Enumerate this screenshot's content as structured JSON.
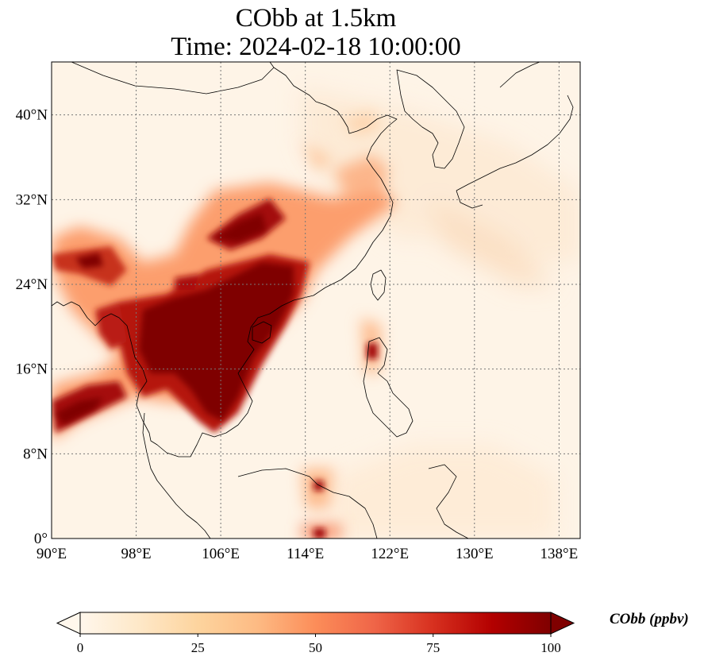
{
  "title": {
    "line1": "CObb at 1.5km",
    "line2": "Time: 2024-02-18 10:00:00"
  },
  "map": {
    "lon_range": [
      90,
      140
    ],
    "lat_range": [
      0,
      45
    ],
    "xticks": [
      {
        "value": 90,
        "label": "90°E"
      },
      {
        "value": 98,
        "label": "98°E"
      },
      {
        "value": 106,
        "label": "106°E"
      },
      {
        "value": 114,
        "label": "114°E"
      },
      {
        "value": 122,
        "label": "122°E"
      },
      {
        "value": 130,
        "label": "130°E"
      },
      {
        "value": 138,
        "label": "138°E"
      }
    ],
    "yticks": [
      {
        "value": 0,
        "label": "0°"
      },
      {
        "value": 8,
        "label": "8°N"
      },
      {
        "value": 16,
        "label": "16°N"
      },
      {
        "value": 24,
        "label": "24°N"
      },
      {
        "value": 32,
        "label": "32°N"
      },
      {
        "value": 40,
        "label": "40°N"
      }
    ],
    "gridlines": true,
    "colormap": "OrRd",
    "plumes": [
      {
        "region": "Indochina / South China core",
        "value": 100
      },
      {
        "region": "Myanmar / Yunnan",
        "value": 90
      },
      {
        "region": "Bay of Bengal outflow",
        "value": 85
      },
      {
        "region": "Sichuan Basin",
        "value": 90
      },
      {
        "region": "Yangtze outflow to East China Sea",
        "value": 50
      },
      {
        "region": "Luzon hotspot",
        "value": 85
      },
      {
        "region": "Borneo hotspot",
        "value": 85
      }
    ]
  },
  "colorbar": {
    "label": "CObb (ppbv)",
    "min": 0,
    "max": 100,
    "extend": "both",
    "ticks": [
      {
        "value": 0,
        "label": "0"
      },
      {
        "value": 25,
        "label": "25"
      },
      {
        "value": 50,
        "label": "50"
      },
      {
        "value": 75,
        "label": "75"
      },
      {
        "value": 100,
        "label": "100"
      }
    ],
    "colors": [
      "#fff7ec",
      "#fee8c8",
      "#fdd49e",
      "#fdbb84",
      "#fc8d59",
      "#ef6548",
      "#d7301f",
      "#b30000",
      "#7f0000"
    ]
  }
}
